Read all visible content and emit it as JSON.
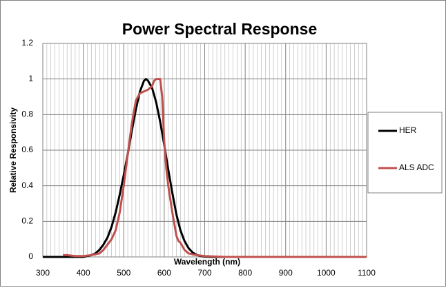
{
  "chart_data": {
    "type": "line",
    "title": "Power Spectral Response",
    "xlabel": "Wavelength (nm)",
    "ylabel": "Relative Responsivity",
    "xlim": [
      300,
      1100
    ],
    "xticks": [
      300,
      400,
      500,
      600,
      700,
      800,
      900,
      1000,
      1100
    ],
    "ylim": [
      0,
      1.2
    ],
    "yticks": [
      0,
      0.2,
      0.4,
      0.6,
      0.8,
      1,
      1.2
    ],
    "grid": true,
    "legend": "right",
    "series": [
      {
        "name": "HER",
        "color": "#000000",
        "x": [
          300,
          400,
          410,
          420,
          430,
          440,
          450,
          460,
          470,
          480,
          490,
          500,
          510,
          520,
          530,
          540,
          550,
          555,
          560,
          570,
          580,
          590,
          600,
          610,
          620,
          630,
          640,
          650,
          660,
          670,
          680,
          690,
          700,
          720,
          1100
        ],
        "values": [
          0,
          0,
          0.005,
          0.01,
          0.02,
          0.04,
          0.07,
          0.11,
          0.17,
          0.25,
          0.35,
          0.46,
          0.58,
          0.71,
          0.83,
          0.93,
          0.99,
          1.0,
          0.99,
          0.95,
          0.87,
          0.76,
          0.63,
          0.49,
          0.36,
          0.24,
          0.15,
          0.09,
          0.05,
          0.025,
          0.012,
          0.005,
          0.002,
          0,
          0
        ]
      },
      {
        "name": "ALS ADC",
        "color": "#c0504d",
        "x": [
          350,
          360,
          380,
          400,
          420,
          440,
          450,
          460,
          470,
          480,
          490,
          500,
          510,
          520,
          530,
          540,
          550,
          560,
          570,
          575,
          580,
          585,
          590,
          595,
          600,
          605,
          610,
          620,
          630,
          635,
          640,
          650,
          660,
          680,
          700,
          750,
          1100
        ],
        "values": [
          0.01,
          0.01,
          0.005,
          0.005,
          0.01,
          0.02,
          0.04,
          0.07,
          0.1,
          0.15,
          0.25,
          0.4,
          0.58,
          0.75,
          0.88,
          0.92,
          0.93,
          0.94,
          0.96,
          0.99,
          1.0,
          1.0,
          1.0,
          0.9,
          0.65,
          0.5,
          0.4,
          0.25,
          0.12,
          0.09,
          0.08,
          0.04,
          0.02,
          0.01,
          0.005,
          0,
          0
        ]
      }
    ]
  }
}
